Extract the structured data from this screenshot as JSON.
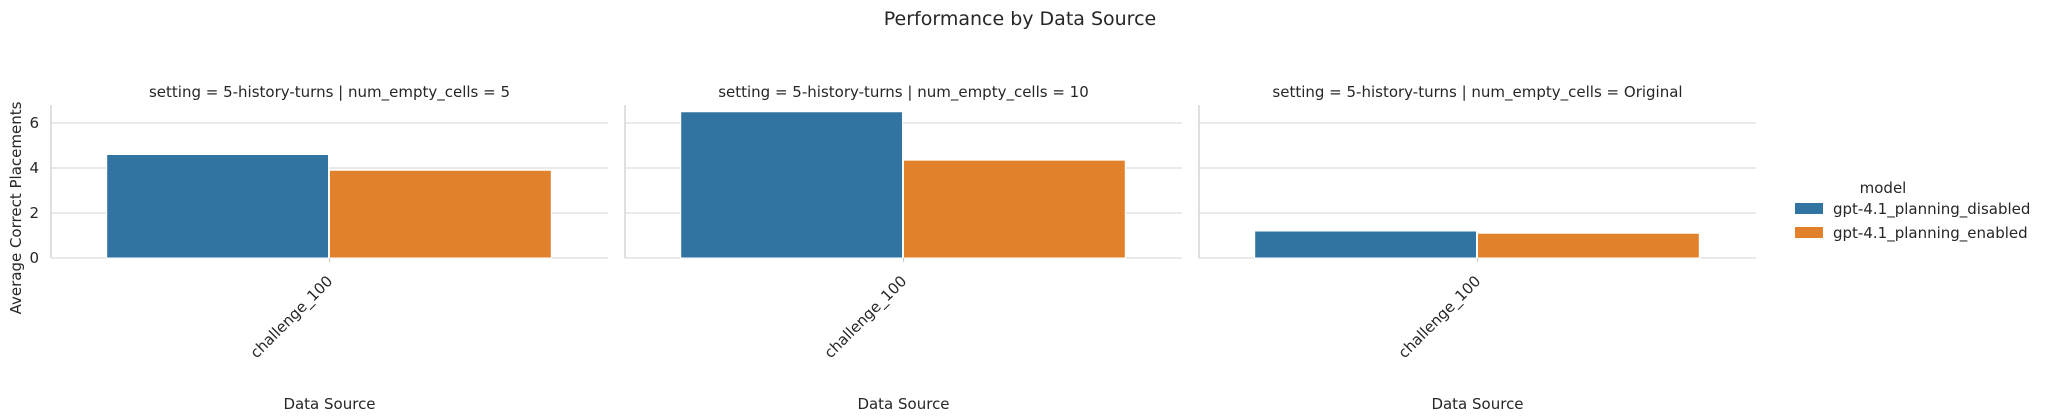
{
  "chart_data": {
    "type": "bar",
    "title": "Performance by Data Source",
    "ylabel": "Average Correct Placements",
    "xlabel": "Data Source",
    "ylim": [
      0,
      6.8
    ],
    "yticks": [
      "0",
      "2",
      "4",
      "6"
    ],
    "grid": true,
    "legend": {
      "title": "model",
      "placement": "right",
      "entries": [
        "gpt-4.1_planning_disabled",
        "gpt-4.1_planning_enabled"
      ]
    },
    "colors": [
      "#3274a1",
      "#e1812c"
    ],
    "facets": [
      {
        "title": "setting = 5-history-turns | num_empty_cells = 5",
        "categories": [
          "challenge_100"
        ],
        "series": [
          {
            "name": "gpt-4.1_planning_disabled",
            "values": [
              4.6
            ]
          },
          {
            "name": "gpt-4.1_planning_enabled",
            "values": [
              3.9
            ]
          }
        ]
      },
      {
        "title": "setting = 5-history-turns | num_empty_cells = 10",
        "categories": [
          "challenge_100"
        ],
        "series": [
          {
            "name": "gpt-4.1_planning_disabled",
            "values": [
              6.5
            ]
          },
          {
            "name": "gpt-4.1_planning_enabled",
            "values": [
              4.35
            ]
          }
        ]
      },
      {
        "title": "setting = 5-history-turns | num_empty_cells = Original",
        "categories": [
          "challenge_100"
        ],
        "series": [
          {
            "name": "gpt-4.1_planning_disabled",
            "values": [
              1.2
            ]
          },
          {
            "name": "gpt-4.1_planning_enabled",
            "values": [
              1.1
            ]
          }
        ]
      }
    ]
  }
}
